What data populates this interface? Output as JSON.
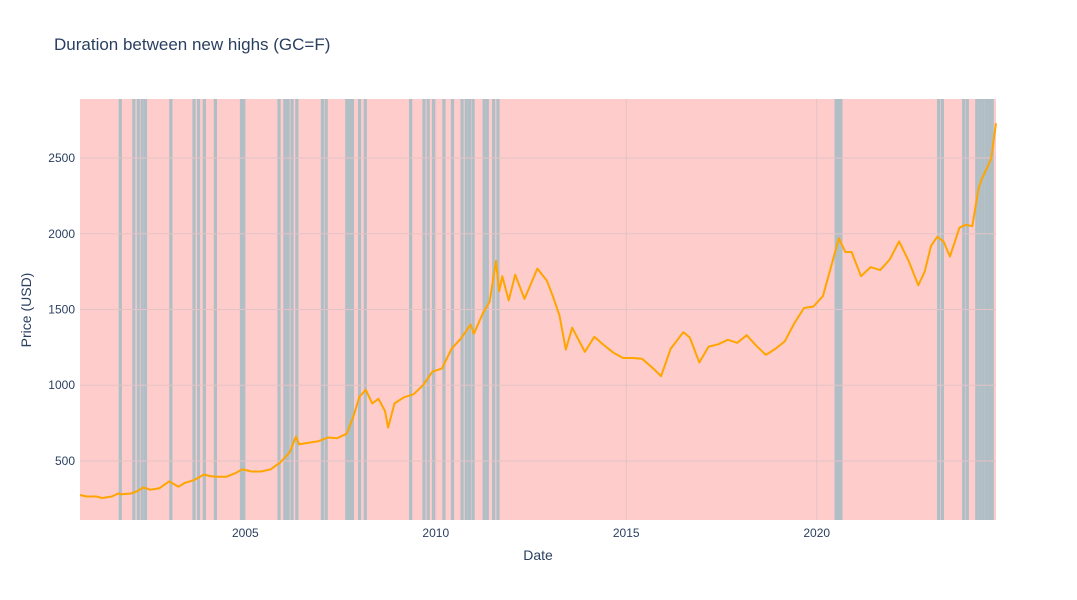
{
  "chart_data": {
    "type": "line",
    "title": "Duration between new highs (GC=F)",
    "xlabel": "Date",
    "ylabel": "Price (USD)",
    "x_range": [
      "2000-08-30",
      "2024-09-15"
    ],
    "ylim": [
      110,
      2890
    ],
    "x_ticks": [
      {
        "date": "2005-01-01",
        "label": "2005"
      },
      {
        "date": "2010-01-01",
        "label": "2010"
      },
      {
        "date": "2015-01-01",
        "label": "2015"
      },
      {
        "date": "2020-01-01",
        "label": "2020"
      }
    ],
    "y_ticks": [
      500,
      1000,
      1500,
      2000,
      2500
    ],
    "grid": true,
    "legend": "none",
    "colors": {
      "line": "#ffa500",
      "background_band": "#ffcccc",
      "new_high_band": "#b0bec5",
      "grid": "#e3c3c6"
    },
    "new_high_dates": [
      "2001-09-20",
      "2002-01-28",
      "2002-03-12",
      "2002-04-18",
      "2002-05-20",
      "2003-01-18",
      "2003-08-28",
      "2003-10-10",
      "2003-12-05",
      "2004-03-20",
      "2004-11-25",
      "2004-12-20",
      "2005-11-20",
      "2006-01-15",
      "2006-02-15",
      "2006-03-25",
      "2006-05-10",
      "2007-01-10",
      "2007-02-15",
      "2007-09-01",
      "2007-09-30",
      "2007-10-25",
      "2008-01-01",
      "2008-02-25",
      "2009-05-05",
      "2009-09-10",
      "2009-10-20",
      "2009-12-10",
      "2010-03-20",
      "2010-06-10",
      "2010-09-10",
      "2010-10-20",
      "2010-11-20",
      "2010-12-25",
      "2011-04-10",
      "2011-05-10",
      "2011-07-10",
      "2011-08-20",
      "2020-07-05",
      "2020-08-01",
      "2020-08-20",
      "2023-03-15",
      "2023-04-20",
      "2023-11-10",
      "2023-12-15",
      "2024-03-15",
      "2024-04-15",
      "2024-05-15",
      "2024-06-15",
      "2024-07-15",
      "2024-08-10"
    ],
    "series": [
      {
        "x": [
          "2000-08-30",
          "2000-11-01",
          "2001-02-01",
          "2001-04-01",
          "2001-07-01",
          "2001-09-01",
          "2001-10-01",
          "2002-01-01",
          "2002-03-01",
          "2002-05-01",
          "2002-07-01",
          "2002-10-01",
          "2003-01-01",
          "2003-04-01",
          "2003-06-01",
          "2003-09-01",
          "2003-12-01",
          "2004-02-01",
          "2004-04-01",
          "2004-07-01",
          "2004-10-01",
          "2004-12-01",
          "2005-03-01",
          "2005-06-01",
          "2005-09-01",
          "2005-12-01",
          "2006-03-01",
          "2006-05-01",
          "2006-06-01",
          "2006-09-01",
          "2006-12-01",
          "2007-03-01",
          "2007-06-01",
          "2007-09-01",
          "2007-11-01",
          "2008-01-01",
          "2008-03-01",
          "2008-05-01",
          "2008-07-01",
          "2008-09-01",
          "2008-10-01",
          "2008-12-01",
          "2009-03-01",
          "2009-06-01",
          "2009-09-01",
          "2009-12-01",
          "2010-03-01",
          "2010-06-01",
          "2010-09-01",
          "2010-12-01",
          "2011-01-01",
          "2011-04-01",
          "2011-06-01",
          "2011-08-01",
          "2011-09-01",
          "2011-10-01",
          "2011-12-01",
          "2012-02-01",
          "2012-05-01",
          "2012-09-01",
          "2012-12-01",
          "2013-02-01",
          "2013-04-01",
          "2013-06-01",
          "2013-08-01",
          "2013-12-01",
          "2014-03-01",
          "2014-06-01",
          "2014-09-01",
          "2014-12-01",
          "2015-03-01",
          "2015-06-01",
          "2015-09-01",
          "2015-12-01",
          "2016-03-01",
          "2016-07-01",
          "2016-09-01",
          "2016-12-01",
          "2017-03-01",
          "2017-06-01",
          "2017-09-01",
          "2017-12-01",
          "2018-03-01",
          "2018-06-01",
          "2018-09-01",
          "2018-12-01",
          "2019-03-01",
          "2019-06-01",
          "2019-09-01",
          "2019-12-01",
          "2020-03-01",
          "2020-05-01",
          "2020-08-01",
          "2020-10-01",
          "2020-12-01",
          "2021-03-01",
          "2021-06-01",
          "2021-09-01",
          "2021-12-01",
          "2022-03-01",
          "2022-06-01",
          "2022-09-01",
          "2022-11-01",
          "2023-01-01",
          "2023-03-01",
          "2023-05-01",
          "2023-07-01",
          "2023-10-01",
          "2023-12-01",
          "2024-02-01",
          "2024-04-01",
          "2024-05-01",
          "2024-07-01",
          "2024-08-01",
          "2024-09-15"
        ],
        "y": [
          275,
          265,
          265,
          255,
          265,
          285,
          280,
          285,
          300,
          325,
          310,
          320,
          365,
          330,
          355,
          375,
          410,
          400,
          395,
          395,
          420,
          445,
          430,
          430,
          445,
          490,
          555,
          660,
          610,
          620,
          630,
          655,
          650,
          680,
          790,
          925,
          970,
          880,
          910,
          830,
          720,
          880,
          920,
          940,
          1000,
          1090,
          1110,
          1240,
          1310,
          1400,
          1340,
          1480,
          1550,
          1820,
          1620,
          1720,
          1560,
          1730,
          1570,
          1770,
          1690,
          1580,
          1460,
          1235,
          1380,
          1220,
          1320,
          1265,
          1215,
          1180,
          1180,
          1175,
          1120,
          1060,
          1240,
          1350,
          1315,
          1150,
          1255,
          1270,
          1300,
          1280,
          1330,
          1260,
          1200,
          1240,
          1290,
          1410,
          1510,
          1520,
          1590,
          1740,
          1970,
          1880,
          1880,
          1720,
          1780,
          1760,
          1830,
          1950,
          1820,
          1660,
          1750,
          1920,
          1980,
          1950,
          1850,
          2040,
          2060,
          2050,
          2300,
          2360,
          2450,
          2500,
          2730
        ]
      }
    ]
  }
}
